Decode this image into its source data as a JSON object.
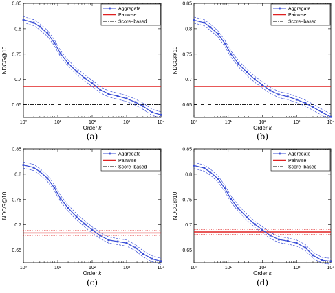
{
  "chart_data": [
    {
      "type": "line",
      "caption": "(a)",
      "xlabel": "Order k",
      "ylabel": "NDCG@10",
      "xscale": "log",
      "xlim": [
        1,
        10000
      ],
      "ylim": [
        0.625,
        0.85
      ],
      "xticks": [
        1,
        10,
        100,
        1000,
        10000
      ],
      "xtick_labels": [
        "10⁰",
        "10¹",
        "10²",
        "10³",
        "10⁴"
      ],
      "yticks": [
        0.65,
        0.7,
        0.75,
        0.8,
        0.85
      ],
      "ytick_labels": [
        "0.65",
        "0.7",
        "0.75",
        "0.8",
        "0.85"
      ],
      "legend": {
        "position": "top-right",
        "entries": [
          "Aggregate",
          "Pairwise",
          "Score−based"
        ]
      },
      "series": [
        {
          "name": "Aggregate",
          "style": "solid-marker",
          "color": "#3b4fd6",
          "x": [
            1,
            2,
            3,
            5,
            8,
            12,
            20,
            35,
            60,
            100,
            170,
            300,
            550,
            1000,
            1800,
            3000,
            5500,
            10000
          ],
          "y": [
            0.818,
            0.812,
            0.804,
            0.791,
            0.772,
            0.751,
            0.732,
            0.716,
            0.703,
            0.692,
            0.68,
            0.671,
            0.667,
            0.662,
            0.655,
            0.647,
            0.635,
            0.63
          ],
          "band": 0.006
        },
        {
          "name": "Pairwise",
          "style": "solid",
          "color": "#e02020",
          "y_const": 0.686,
          "band": 0.005
        },
        {
          "name": "Score−based",
          "style": "dash-dot",
          "color": "#000000",
          "y_const": 0.65
        }
      ]
    },
    {
      "type": "line",
      "caption": "(b)",
      "xlabel": "Order k",
      "ylabel": "NDCG@10",
      "xscale": "log",
      "xlim": [
        1,
        10000
      ],
      "ylim": [
        0.625,
        0.85
      ],
      "xticks": [
        1,
        10,
        100,
        1000,
        10000
      ],
      "xtick_labels": [
        "10⁰",
        "10¹",
        "10²",
        "10³",
        "10⁴"
      ],
      "yticks": [
        0.65,
        0.7,
        0.75,
        0.8,
        0.85
      ],
      "ytick_labels": [
        "0.65",
        "0.7",
        "0.75",
        "0.8",
        "0.85"
      ],
      "legend": {
        "position": "top-right",
        "entries": [
          "Aggregate",
          "Pairwise",
          "Score−based"
        ]
      },
      "series": [
        {
          "name": "Aggregate",
          "style": "solid-marker",
          "color": "#3b4fd6",
          "x": [
            1,
            2,
            3,
            5,
            8,
            12,
            20,
            35,
            60,
            100,
            170,
            300,
            550,
            1000,
            1800,
            3000,
            5500,
            10000
          ],
          "y": [
            0.817,
            0.812,
            0.803,
            0.79,
            0.771,
            0.75,
            0.731,
            0.714,
            0.7,
            0.689,
            0.678,
            0.67,
            0.666,
            0.66,
            0.653,
            0.645,
            0.635,
            0.626
          ],
          "band": 0.006
        },
        {
          "name": "Pairwise",
          "style": "solid",
          "color": "#e02020",
          "y_const": 0.686,
          "band": 0.005
        },
        {
          "name": "Score−based",
          "style": "dash-dot",
          "color": "#000000",
          "y_const": 0.65
        }
      ]
    },
    {
      "type": "line",
      "caption": "(c)",
      "xlabel": "Order k",
      "ylabel": "NDCG@10",
      "xscale": "log",
      "xlim": [
        1,
        10000
      ],
      "ylim": [
        0.625,
        0.85
      ],
      "xticks": [
        1,
        10,
        100,
        1000,
        10000
      ],
      "xtick_labels": [
        "10⁰",
        "10¹",
        "10²",
        "10³",
        "10⁴"
      ],
      "yticks": [
        0.65,
        0.7,
        0.75,
        0.8,
        0.85
      ],
      "ytick_labels": [
        "0.65",
        "0.7",
        "0.75",
        "0.8",
        "0.85"
      ],
      "legend": {
        "position": "top-right",
        "entries": [
          "Aggregate",
          "Pairwise",
          "Score−based"
        ]
      },
      "series": [
        {
          "name": "Aggregate",
          "style": "solid-marker",
          "color": "#3b4fd6",
          "x": [
            1,
            2,
            3,
            5,
            8,
            12,
            20,
            35,
            60,
            100,
            170,
            300,
            550,
            1000,
            1800,
            3000,
            5500,
            10000
          ],
          "y": [
            0.818,
            0.813,
            0.805,
            0.792,
            0.773,
            0.752,
            0.733,
            0.716,
            0.702,
            0.69,
            0.679,
            0.67,
            0.667,
            0.664,
            0.655,
            0.643,
            0.633,
            0.628
          ],
          "band": 0.006
        },
        {
          "name": "Pairwise",
          "style": "solid",
          "color": "#e02020",
          "y_const": 0.684,
          "band": 0.005
        },
        {
          "name": "Score−based",
          "style": "dash-dot",
          "color": "#000000",
          "y_const": 0.65
        }
      ]
    },
    {
      "type": "line",
      "caption": "(d)",
      "xlabel": "Order k",
      "ylabel": "NDCG@10",
      "xscale": "log",
      "xlim": [
        1,
        10000
      ],
      "ylim": [
        0.625,
        0.85
      ],
      "xticks": [
        1,
        10,
        100,
        1000,
        10000
      ],
      "xtick_labels": [
        "10⁰",
        "10¹",
        "10²",
        "10³",
        "10⁴"
      ],
      "yticks": [
        0.65,
        0.7,
        0.75,
        0.8,
        0.85
      ],
      "ytick_labels": [
        "0.65",
        "0.7",
        "0.75",
        "0.8",
        "0.85"
      ],
      "legend": {
        "position": "top-right",
        "entries": [
          "Aggregate",
          "Pairwise",
          "Score−based"
        ]
      },
      "series": [
        {
          "name": "Aggregate",
          "style": "solid-marker",
          "color": "#3b4fd6",
          "x": [
            1,
            2,
            3,
            5,
            8,
            12,
            20,
            35,
            60,
            100,
            170,
            300,
            550,
            1000,
            1800,
            3000,
            5500,
            10000
          ],
          "y": [
            0.817,
            0.812,
            0.804,
            0.791,
            0.772,
            0.751,
            0.732,
            0.715,
            0.701,
            0.69,
            0.679,
            0.671,
            0.668,
            0.664,
            0.655,
            0.64,
            0.63,
            0.628
          ],
          "band": 0.006
        },
        {
          "name": "Pairwise",
          "style": "solid",
          "color": "#e02020",
          "y_const": 0.686,
          "band": 0.005
        },
        {
          "name": "Score−based",
          "style": "dash-dot",
          "color": "#000000",
          "y_const": 0.65
        }
      ]
    }
  ]
}
